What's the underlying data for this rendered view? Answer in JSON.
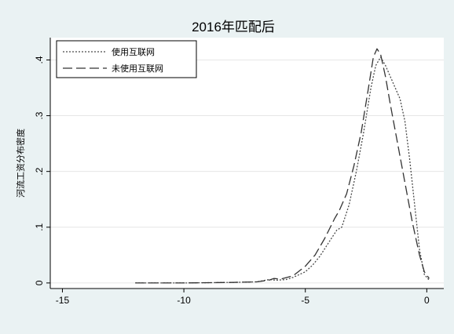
{
  "chart_data": {
    "type": "line",
    "title": "2016年匹配后",
    "xlabel": "",
    "ylabel": "河流工资分布密度",
    "xlim": [
      -15.5,
      0.7
    ],
    "ylim": [
      -0.01,
      0.44
    ],
    "x_ticks": [
      -15,
      -10,
      -5,
      0
    ],
    "x_tick_labels": [
      "-15",
      "-10",
      "-5",
      "0"
    ],
    "y_ticks": [
      0,
      0.1,
      0.2,
      0.3,
      0.4
    ],
    "y_tick_labels": [
      "0",
      ".1",
      ".2",
      ".3",
      ".4"
    ],
    "grid": true,
    "legend_position": "top-left",
    "series": [
      {
        "name": "使用互联网",
        "style": "dotted",
        "color": "#4a4a4a",
        "points": [
          [
            -12.0,
            0.0
          ],
          [
            -10.0,
            0.0
          ],
          [
            -8.0,
            0.001
          ],
          [
            -7.0,
            0.002
          ],
          [
            -6.5,
            0.006
          ],
          [
            -6.2,
            0.005
          ],
          [
            -5.8,
            0.006
          ],
          [
            -5.5,
            0.01
          ],
          [
            -5.0,
            0.02
          ],
          [
            -4.7,
            0.032
          ],
          [
            -4.4,
            0.048
          ],
          [
            -4.0,
            0.075
          ],
          [
            -3.7,
            0.095
          ],
          [
            -3.5,
            0.1
          ],
          [
            -3.2,
            0.14
          ],
          [
            -2.9,
            0.2
          ],
          [
            -2.6,
            0.27
          ],
          [
            -2.3,
            0.35
          ],
          [
            -2.1,
            0.39
          ],
          [
            -1.9,
            0.405
          ],
          [
            -1.7,
            0.39
          ],
          [
            -1.5,
            0.37
          ],
          [
            -1.3,
            0.35
          ],
          [
            -1.1,
            0.33
          ],
          [
            -0.9,
            0.29
          ],
          [
            -0.7,
            0.22
          ],
          [
            -0.5,
            0.14
          ],
          [
            -0.3,
            0.06
          ],
          [
            -0.1,
            0.015
          ],
          [
            0.1,
            0.005
          ]
        ]
      },
      {
        "name": "未使用互联网",
        "style": "dashed",
        "color": "#333333",
        "points": [
          [
            -12.0,
            0.0
          ],
          [
            -10.0,
            0.0
          ],
          [
            -8.0,
            0.001
          ],
          [
            -7.0,
            0.002
          ],
          [
            -6.5,
            0.005
          ],
          [
            -6.3,
            0.008
          ],
          [
            -6.0,
            0.007
          ],
          [
            -5.5,
            0.013
          ],
          [
            -5.0,
            0.03
          ],
          [
            -4.6,
            0.05
          ],
          [
            -4.2,
            0.08
          ],
          [
            -3.8,
            0.115
          ],
          [
            -3.6,
            0.13
          ],
          [
            -3.3,
            0.16
          ],
          [
            -3.0,
            0.21
          ],
          [
            -2.7,
            0.27
          ],
          [
            -2.4,
            0.35
          ],
          [
            -2.2,
            0.405
          ],
          [
            -2.05,
            0.42
          ],
          [
            -1.9,
            0.41
          ],
          [
            -1.7,
            0.37
          ],
          [
            -1.5,
            0.32
          ],
          [
            -1.2,
            0.25
          ],
          [
            -0.9,
            0.18
          ],
          [
            -0.6,
            0.11
          ],
          [
            -0.3,
            0.05
          ],
          [
            -0.1,
            0.02
          ],
          [
            0.1,
            0.008
          ]
        ]
      }
    ]
  }
}
